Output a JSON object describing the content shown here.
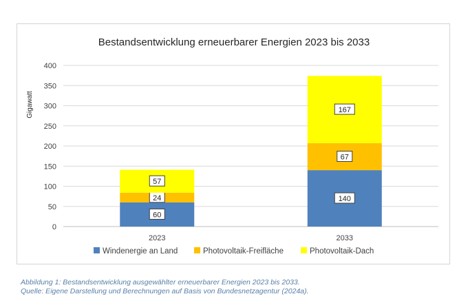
{
  "chart_data": {
    "type": "bar",
    "stacked": true,
    "title": "Bestandsentwicklung erneuerbarer Energien 2023 bis 2033",
    "ylabel": "Gigawatt",
    "xlabel": "",
    "categories": [
      "2023",
      "2033"
    ],
    "ylim": [
      0,
      400
    ],
    "yticks": [
      0,
      50,
      100,
      150,
      200,
      250,
      300,
      350,
      400
    ],
    "grid": true,
    "legend_position": "bottom",
    "series": [
      {
        "name": "Windenergie an Land",
        "values": [
          60,
          140
        ],
        "color": "#4f81bd"
      },
      {
        "name": "Photovoltaik-Freifläche",
        "values": [
          24,
          67
        ],
        "color": "#ffc000"
      },
      {
        "name": "Photovoltaik-Dach",
        "values": [
          57,
          167
        ],
        "color": "#ffff00"
      }
    ]
  },
  "caption": {
    "line1": "Abbildung 1: Bestandsentwicklung ausgewählter erneuerbarer Energien 2023 bis 2033.",
    "line2": "Quelle: Eigene Darstellung und Berechnungen auf Basis von Bundesnetzagentur (2024a)."
  }
}
